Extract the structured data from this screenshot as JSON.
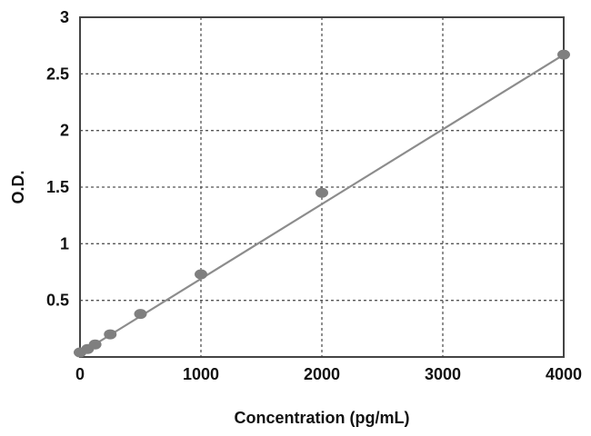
{
  "chart_data": {
    "type": "scatter",
    "title": "",
    "xlabel": "Concentration (pg/mL)",
    "ylabel": "O.D.",
    "xlim": [
      0,
      4000
    ],
    "ylim": [
      0,
      3
    ],
    "xticks": [
      0,
      1000,
      2000,
      3000,
      4000
    ],
    "yticks": [
      0.5,
      1,
      1.5,
      2,
      2.5,
      3
    ],
    "xtick_labels": [
      "0",
      "1000",
      "2000",
      "3000",
      "4000"
    ],
    "ytick_labels": [
      "0.5",
      "1",
      "1.5",
      "2",
      "2.5",
      "3"
    ],
    "grid": "dashed",
    "legend": "none",
    "series": [
      {
        "x": [
          0,
          62.5,
          125,
          250,
          500,
          1000,
          2000,
          4000
        ],
        "y": [
          0.04,
          0.07,
          0.11,
          0.2,
          0.38,
          0.73,
          1.45,
          2.67
        ]
      }
    ],
    "trendline": {
      "type": "linear",
      "x": [
        0,
        4000
      ],
      "y": [
        0.03,
        2.67
      ]
    },
    "colors": {
      "marker": "#7f7f7f",
      "line": "#8c8c8c",
      "grid": "#555555",
      "frame": "#444444"
    }
  }
}
